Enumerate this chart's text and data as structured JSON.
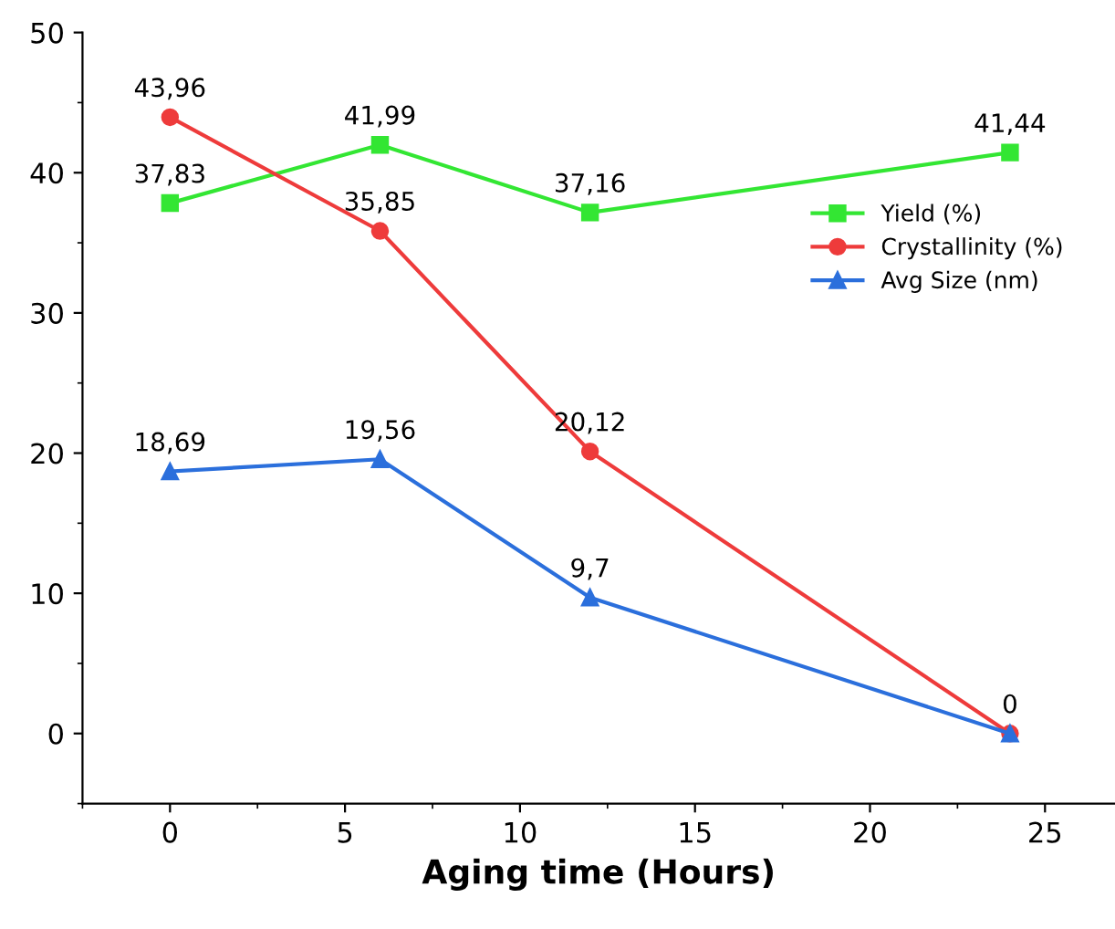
{
  "chart_data": {
    "type": "line",
    "xlabel": "Aging time (Hours)",
    "x": [
      0,
      6,
      12,
      24
    ],
    "series": [
      {
        "name": "Yield (%)",
        "color": "#33e633",
        "marker": "square",
        "values": [
          37.83,
          41.99,
          37.16,
          41.44
        ],
        "value_labels": [
          "37,83",
          "41,99",
          "37,16",
          "41,44"
        ]
      },
      {
        "name": "Crystallinity (%)",
        "color": "#ee3b3b",
        "marker": "circle",
        "values": [
          43.96,
          35.85,
          20.12,
          0
        ],
        "value_labels": [
          "43,96",
          "35,85",
          "20,12",
          null
        ]
      },
      {
        "name": "Avg Size (nm)",
        "color": "#2b6fdc",
        "marker": "triangle",
        "values": [
          18.69,
          19.56,
          9.7,
          0
        ],
        "value_labels": [
          "18,69",
          "19,56",
          "9,7",
          "0"
        ]
      }
    ],
    "xlim": [
      -2.5,
      27
    ],
    "ylim": [
      -5,
      50
    ],
    "xticks": [
      0,
      5,
      10,
      15,
      20,
      25
    ],
    "yticks": [
      0,
      10,
      20,
      30,
      40,
      50
    ],
    "grid": false,
    "legend": "right",
    "line_style": "solid"
  }
}
